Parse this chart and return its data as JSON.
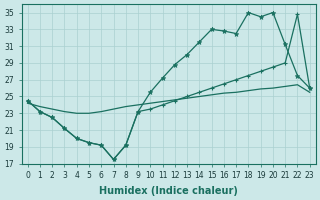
{
  "xlabel": "Humidex (Indice chaleur)",
  "background_color": "#cce8e8",
  "grid_color": "#aad0d0",
  "line_color": "#1a7060",
  "xlim": [
    -0.5,
    23.5
  ],
  "ylim": [
    17,
    36
  ],
  "xticks": [
    0,
    1,
    2,
    3,
    4,
    5,
    6,
    7,
    8,
    9,
    10,
    11,
    12,
    13,
    14,
    15,
    16,
    17,
    18,
    19,
    20,
    21,
    22,
    23
  ],
  "yticks": [
    17,
    19,
    21,
    23,
    25,
    27,
    29,
    31,
    33,
    35
  ],
  "x": [
    0,
    1,
    2,
    3,
    4,
    5,
    6,
    7,
    8,
    9,
    10,
    11,
    12,
    13,
    14,
    15,
    16,
    17,
    18,
    19,
    20,
    21,
    22,
    23
  ],
  "y_upper": [
    24.5,
    23.2,
    22.5,
    21.2,
    20.0,
    19.5,
    19.2,
    17.5,
    19.2,
    23.2,
    25.5,
    27.2,
    28.8,
    30.0,
    31.5,
    33.0,
    32.8,
    32.5,
    35.0,
    34.5,
    35.0,
    31.2,
    27.5,
    26.0
  ],
  "y_lower": [
    24.5,
    23.2,
    22.5,
    21.2,
    20.0,
    19.5,
    19.2,
    17.5,
    19.2,
    23.2,
    23.5,
    24.0,
    24.5,
    25.0,
    25.5,
    26.0,
    26.5,
    27.0,
    27.5,
    28.0,
    28.5,
    29.0,
    34.8,
    26.0
  ],
  "y_diag": [
    24.2,
    23.8,
    23.5,
    23.2,
    23.0,
    23.0,
    23.2,
    23.5,
    23.8,
    24.0,
    24.2,
    24.4,
    24.6,
    24.8,
    25.0,
    25.2,
    25.4,
    25.5,
    25.7,
    25.9,
    26.0,
    26.2,
    26.4,
    25.5
  ],
  "fontsize_xlabel": 7,
  "fontsize_tick": 5.5
}
